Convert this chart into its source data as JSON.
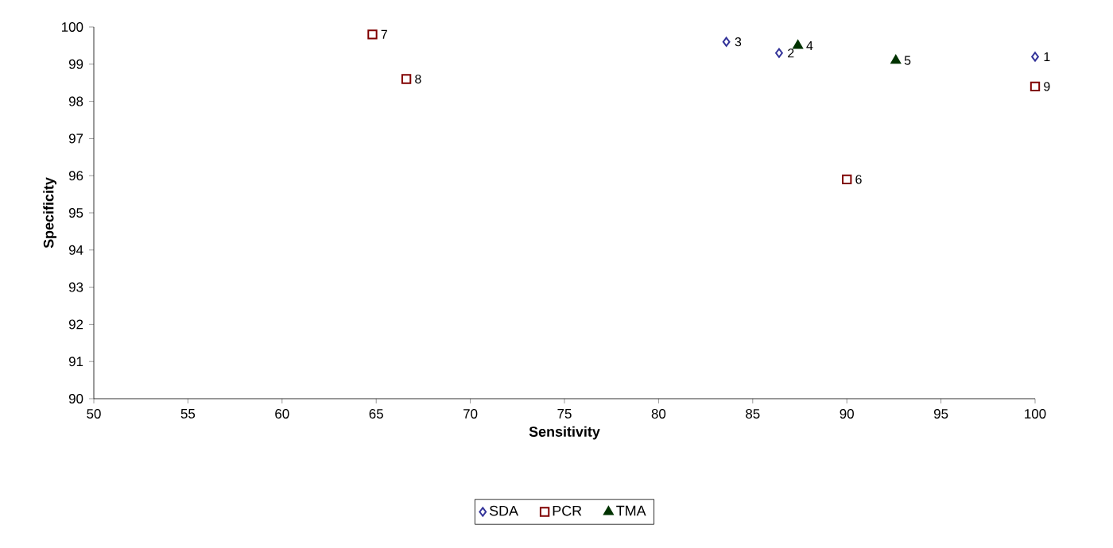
{
  "chart_data": {
    "type": "scatter",
    "xlabel": "Sensitivity",
    "ylabel": "Specificity",
    "xlim": [
      50,
      100
    ],
    "xticks": [
      50,
      55,
      60,
      65,
      70,
      75,
      80,
      85,
      90,
      95,
      100
    ],
    "ylim": [
      90,
      100
    ],
    "yticks": [
      90,
      91,
      92,
      93,
      94,
      95,
      96,
      97,
      98,
      99,
      100
    ],
    "grid": false,
    "legend": "bottom",
    "series": [
      {
        "name": "SDA",
        "color": "#333399",
        "marker": "diamond",
        "x": [
          100,
          86.4,
          83.6
        ],
        "values": [
          99.2,
          99.3,
          99.6
        ]
      },
      {
        "name": "PCR",
        "color": "#800000",
        "marker": "square",
        "x": [
          90,
          64.8,
          66.6,
          100
        ],
        "values": [
          95.9,
          99.8,
          98.6,
          98.4
        ]
      },
      {
        "name": "TMA",
        "color": "#003300",
        "marker": "triangle",
        "x": [
          87.4,
          92.6
        ],
        "values": [
          99.5,
          99.1
        ]
      }
    ],
    "annotations": [
      {
        "text": "1",
        "x": 100,
        "y": 99.2
      },
      {
        "text": "2",
        "x": 86.4,
        "y": 99.3
      },
      {
        "text": "3",
        "x": 83.6,
        "y": 99.6
      },
      {
        "text": "4",
        "x": 87.4,
        "y": 99.5
      },
      {
        "text": "5",
        "x": 92.6,
        "y": 99.1
      },
      {
        "text": "6",
        "x": 90,
        "y": 95.9
      },
      {
        "text": "7",
        "x": 64.8,
        "y": 99.8
      },
      {
        "text": "8",
        "x": 66.6,
        "y": 98.6
      },
      {
        "text": "9",
        "x": 100,
        "y": 98.4
      }
    ]
  }
}
